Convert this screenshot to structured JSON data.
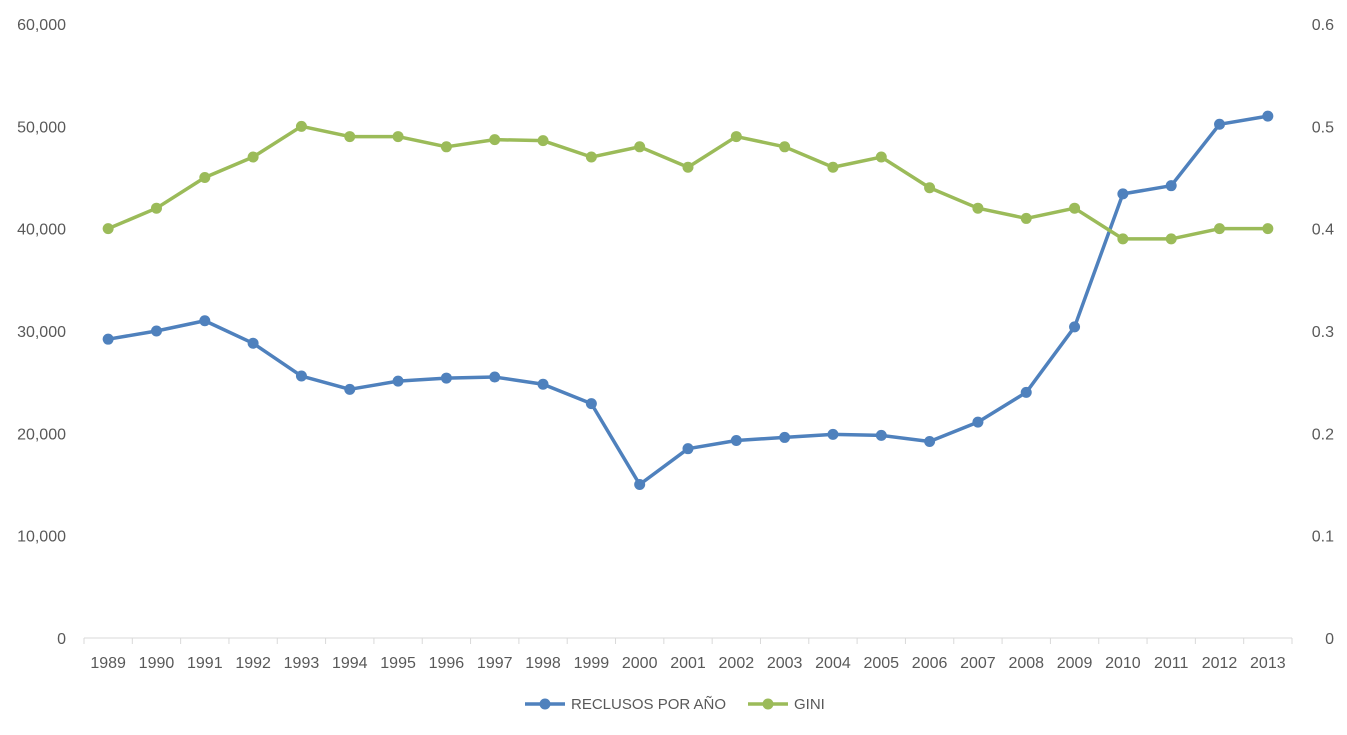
{
  "chart_data": {
    "type": "line",
    "title": "",
    "xlabel": "",
    "ylabel": "",
    "categories": [
      "1989",
      "1990",
      "1991",
      "1992",
      "1993",
      "1994",
      "1995",
      "1996",
      "1997",
      "1998",
      "1999",
      "2000",
      "2001",
      "2002",
      "2003",
      "2004",
      "2005",
      "2006",
      "2007",
      "2008",
      "2009",
      "2010",
      "2011",
      "2012",
      "2013"
    ],
    "y_left": {
      "range": [
        0,
        60000
      ],
      "ticks": [
        0,
        10000,
        20000,
        30000,
        40000,
        50000,
        60000
      ],
      "tick_labels": [
        "0",
        "10,000",
        "20,000",
        "30,000",
        "40,000",
        "50,000",
        "60,000"
      ]
    },
    "y_right": {
      "range": [
        0,
        0.6
      ],
      "ticks": [
        0,
        0.1,
        0.2,
        0.3,
        0.4,
        0.5,
        0.6
      ],
      "tick_labels": [
        "0",
        "0.1",
        "0.2",
        "0.3",
        "0.4",
        "0.5",
        "0.6"
      ]
    },
    "grid": false,
    "legend_position": "bottom",
    "series": [
      {
        "name": "RECLUSOS POR AÑO",
        "axis": "left",
        "color": "#4f81bd",
        "values": [
          29200,
          30000,
          31000,
          28800,
          25600,
          24300,
          25100,
          25400,
          25500,
          24800,
          22900,
          15000,
          18500,
          19300,
          19600,
          19900,
          19800,
          19200,
          21100,
          24000,
          30400,
          43400,
          44200,
          50200,
          51000
        ]
      },
      {
        "name": "GINI",
        "axis": "right",
        "color": "#9bbb59",
        "values": [
          0.4,
          0.42,
          0.45,
          0.47,
          0.5,
          0.49,
          0.49,
          0.48,
          0.487,
          0.486,
          0.47,
          0.48,
          0.46,
          0.49,
          0.48,
          0.46,
          0.47,
          0.44,
          0.42,
          0.41,
          0.42,
          0.39,
          0.39,
          0.4,
          0.4
        ]
      }
    ]
  }
}
